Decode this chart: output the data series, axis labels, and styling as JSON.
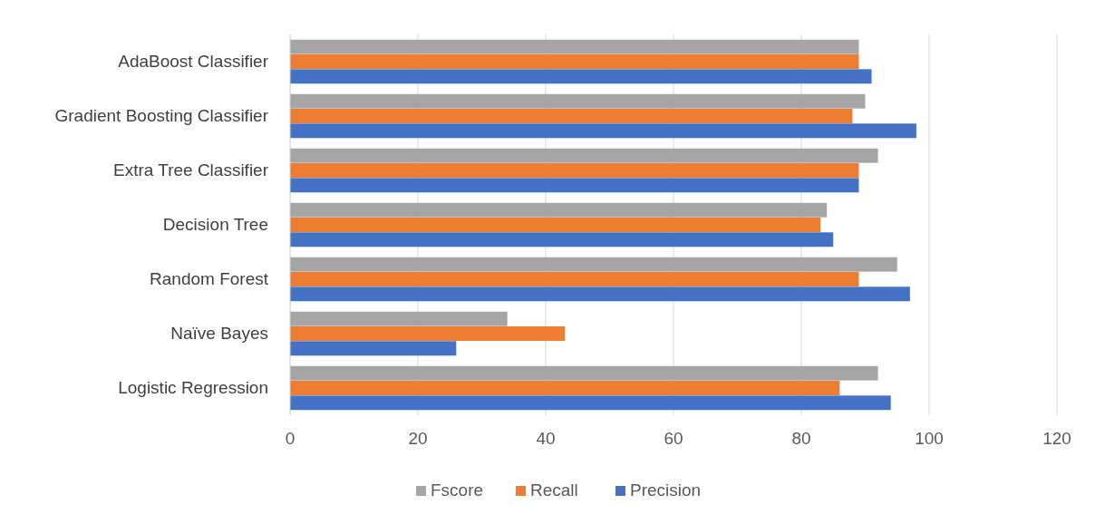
{
  "chart_data": {
    "type": "bar",
    "orientation": "horizontal",
    "categories": [
      "AdaBoost Classifier",
      "Gradient Boosting Classifier",
      "Extra Tree Classifier",
      "Decision Tree",
      "Random Forest",
      "Naïve Bayes",
      "Logistic Regression"
    ],
    "series": [
      {
        "name": "Fscore",
        "color": "#a5a5a5",
        "values": [
          89,
          90,
          92,
          84,
          95,
          34,
          92
        ]
      },
      {
        "name": "Recall",
        "color": "#ed7d31",
        "values": [
          89,
          88,
          89,
          83,
          89,
          43,
          86
        ]
      },
      {
        "name": "Precision",
        "color": "#4472c4",
        "values": [
          91,
          98,
          89,
          85,
          97,
          26,
          94
        ]
      }
    ],
    "xlim": [
      0,
      120
    ],
    "xticks": [
      0,
      20,
      40,
      60,
      80,
      100,
      120
    ],
    "grid": "x",
    "legend": "bottom"
  }
}
